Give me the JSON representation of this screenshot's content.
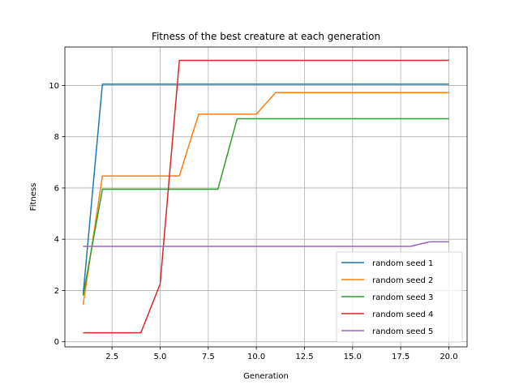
{
  "chart_data": {
    "type": "line",
    "title": "Fitness of the best creature at each generation",
    "xlabel": "Generation",
    "ylabel": "Fitness",
    "xlim": [
      0.05,
      20.95
    ],
    "ylim": [
      -0.2,
      11.5
    ],
    "xticks": [
      2.5,
      5.0,
      7.5,
      10.0,
      12.5,
      15.0,
      17.5,
      20.0
    ],
    "xtick_labels": [
      "2.5",
      "5.0",
      "7.5",
      "10.0",
      "12.5",
      "15.0",
      "17.5",
      "20.0"
    ],
    "yticks": [
      0,
      2,
      4,
      6,
      8,
      10
    ],
    "ytick_labels": [
      "0",
      "2",
      "4",
      "6",
      "8",
      "10"
    ],
    "grid": true,
    "legend_position": "bottom-right",
    "x": [
      1,
      2,
      3,
      4,
      5,
      6,
      7,
      8,
      9,
      10,
      11,
      12,
      13,
      14,
      15,
      16,
      17,
      18,
      19,
      20
    ],
    "series": [
      {
        "name": "random seed 1",
        "color": "#1f77b4",
        "values": [
          1.85,
          10.05,
          10.05,
          10.05,
          10.05,
          10.05,
          10.05,
          10.05,
          10.05,
          10.05,
          10.05,
          10.05,
          10.05,
          10.05,
          10.05,
          10.05,
          10.05,
          10.05,
          10.05,
          10.05
        ]
      },
      {
        "name": "random seed 2",
        "color": "#ff7f0e",
        "values": [
          1.45,
          6.47,
          6.47,
          6.47,
          6.47,
          6.47,
          8.88,
          8.88,
          8.88,
          8.88,
          9.72,
          9.72,
          9.72,
          9.72,
          9.72,
          9.72,
          9.72,
          9.72,
          9.72,
          9.72
        ]
      },
      {
        "name": "random seed 3",
        "color": "#2ca02c",
        "values": [
          1.8,
          5.95,
          5.95,
          5.95,
          5.95,
          5.95,
          5.95,
          5.95,
          8.7,
          8.7,
          8.7,
          8.7,
          8.7,
          8.7,
          8.7,
          8.7,
          8.7,
          8.7,
          8.7,
          8.7
        ]
      },
      {
        "name": "random seed 4",
        "color": "#d62728",
        "values": [
          0.35,
          0.35,
          0.35,
          0.35,
          2.25,
          10.98,
          10.98,
          10.98,
          10.98,
          10.98,
          10.98,
          10.98,
          10.98,
          10.98,
          10.98,
          10.98,
          10.98,
          10.98,
          10.98,
          10.98
        ]
      },
      {
        "name": "random seed 5",
        "color": "#9467bd",
        "values": [
          3.72,
          3.72,
          3.72,
          3.72,
          3.72,
          3.72,
          3.72,
          3.72,
          3.72,
          3.72,
          3.72,
          3.72,
          3.72,
          3.72,
          3.72,
          3.72,
          3.72,
          3.72,
          3.9,
          3.9
        ]
      }
    ]
  }
}
